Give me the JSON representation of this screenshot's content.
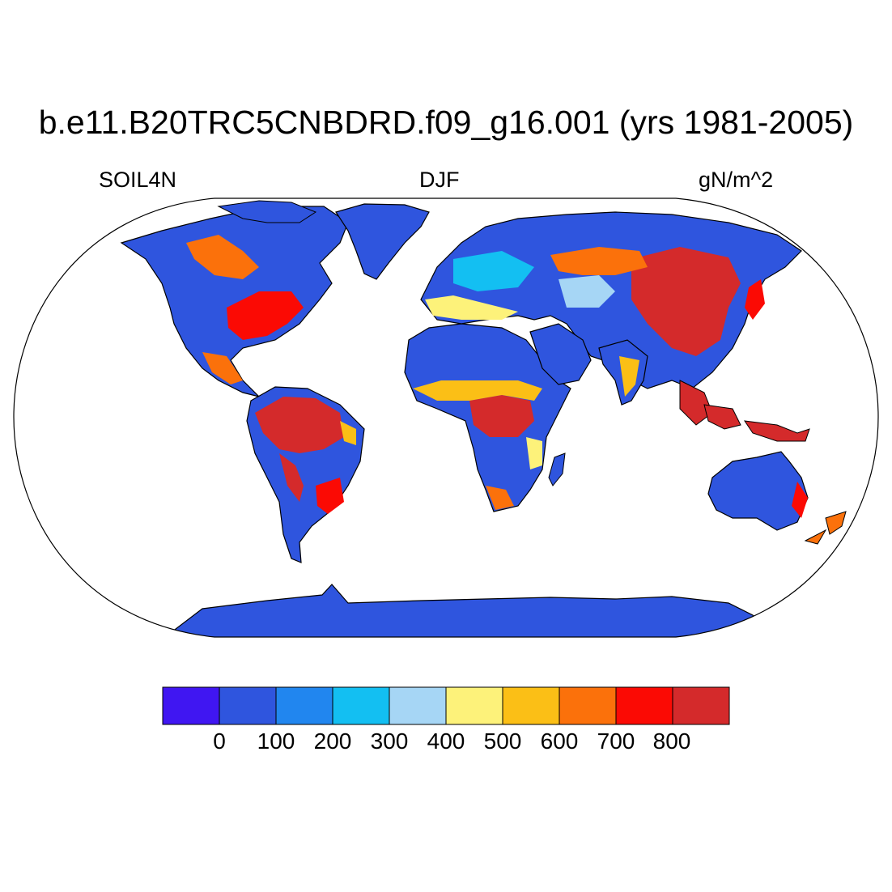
{
  "title": "b.e11.B20TRC5CNBDRD.f09_g16.001 (yrs 1981-2005)",
  "left_string": "SOIL4N",
  "center_string": "DJF",
  "right_string": "gN/m^2",
  "map": {
    "projection": "robinson",
    "variable": "SOIL4N",
    "season": "DJF",
    "units": "gN/m^2",
    "ocean_color": "#ffffff",
    "coastline_color": "#000000"
  },
  "colorbar": {
    "colors": [
      "#4016f2",
      "#2f55de",
      "#2186ef",
      "#13bff2",
      "#a6d6f5",
      "#fdf27a",
      "#fbbf16",
      "#fb710b",
      "#fb0a04",
      "#d42a2b"
    ],
    "tick_labels": [
      "0",
      "100",
      "200",
      "300",
      "400",
      "500",
      "600",
      "700",
      "800"
    ]
  }
}
